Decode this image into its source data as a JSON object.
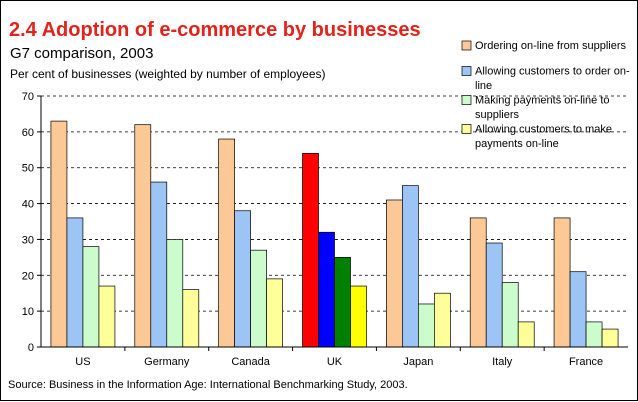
{
  "chart_data": {
    "type": "bar",
    "title": "2.4 Adoption of e-commerce by businesses",
    "subtitle": "G7 comparison, 2003",
    "ylabel": "Per cent of businesses (weighted by number of employees)",
    "source": "Source: Business in the Information Age: International Benchmarking Study, 2003.",
    "categories": [
      "US",
      "Germany",
      "Canada",
      "UK",
      "Japan",
      "Italy",
      "France"
    ],
    "ylim": [
      0,
      70
    ],
    "yticks": [
      0,
      10,
      20,
      30,
      40,
      50,
      60,
      70
    ],
    "grid": "horizontal dashed",
    "legend_position": "top-right",
    "highlight_category": "UK",
    "series": [
      {
        "name": "Ordering on-line from suppliers",
        "legend_lines": [
          "Ordering on-line from suppliers"
        ],
        "color": "#fcc896",
        "highlight_color": "#ff0000",
        "values": [
          63,
          62,
          58,
          54,
          41,
          36,
          36
        ]
      },
      {
        "name": "Allowing customers to order on-line",
        "legend_lines": [
          "Allowing customers to order on-",
          "line"
        ],
        "color": "#9cc4f4",
        "highlight_color": "#0000ff",
        "values": [
          36,
          46,
          38,
          32,
          45,
          29,
          21
        ]
      },
      {
        "name": "Making payments on-line to suppliers",
        "legend_lines": [
          "Making payments on-line to",
          "suppliers"
        ],
        "color": "#ccfccc",
        "highlight_color": "#008000",
        "values": [
          28,
          30,
          27,
          25,
          12,
          18,
          7
        ]
      },
      {
        "name": "Allowing customers to make payments on-line",
        "legend_lines": [
          "Allowing customers to make",
          "payments on-line"
        ],
        "color": "#ffff99",
        "highlight_color": "#ffff00",
        "values": [
          17,
          16,
          19,
          17,
          15,
          7,
          5
        ]
      }
    ]
  }
}
